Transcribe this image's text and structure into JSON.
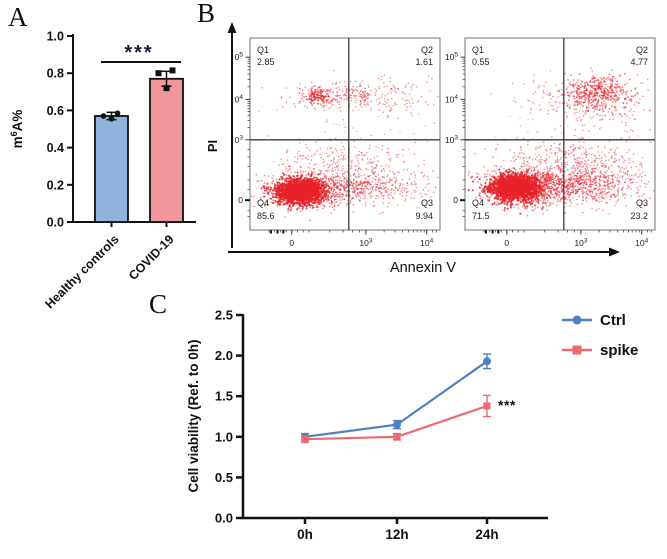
{
  "panels": {
    "a_label": "A",
    "b_label": "B",
    "c_label": "C"
  },
  "panelB_axes": {
    "xlabel": "Annexin V",
    "ylabel": "PI"
  },
  "chart_data": [
    {
      "id": "A",
      "type": "bar",
      "ylabel": {
        "pre": "m",
        "sup": "6",
        "post": "A%"
      },
      "categories": [
        "Healthy controls",
        "COVID-19"
      ],
      "values": [
        0.57,
        0.77
      ],
      "errors": [
        0.02,
        0.04
      ],
      "points": [
        [
          0.57,
          0.585,
          0.555
        ],
        [
          0.8,
          0.815,
          0.72
        ]
      ],
      "bar_colors": [
        "#92b2de",
        "#f0969c"
      ],
      "point_color": "#111111",
      "significance": "***",
      "significance_color": "#1c1c3c",
      "ylim": [
        0,
        1.0
      ],
      "yticks": [
        "1.0",
        "0.8",
        "0.6",
        "0.4",
        "0.2",
        "0.0"
      ],
      "grid": false
    },
    {
      "id": "B_left",
      "type": "scatter",
      "xlabel": "Annexin V",
      "ylabel": "PI",
      "quadrant_labels": [
        "Q1",
        "Q2",
        "Q3",
        "Q4"
      ],
      "quadrant_values": [
        "2.85",
        "1.61",
        "9.94",
        "85.6"
      ],
      "xticks": [
        "0",
        "10^3",
        "10^4"
      ],
      "yticks": [
        "0^5",
        "0^4",
        "0^3",
        "0"
      ],
      "dot_color": "#e8232b",
      "clusters": [
        {
          "n": 1800,
          "cx": 0.26,
          "cy": 0.8,
          "sx": 0.06,
          "sy": 0.03,
          "r": 1.05,
          "a": 0.85
        },
        {
          "n": 700,
          "cx": 0.3,
          "cy": 0.795,
          "sx": 0.11,
          "sy": 0.045,
          "r": 0.8,
          "a": 0.6
        },
        {
          "n": 420,
          "cx": 0.5,
          "cy": 0.78,
          "sx": 0.15,
          "sy": 0.04,
          "r": 0.8,
          "a": 0.55
        },
        {
          "n": 160,
          "cx": 0.72,
          "cy": 0.77,
          "sx": 0.13,
          "sy": 0.05,
          "r": 0.8,
          "a": 0.5
        },
        {
          "n": 220,
          "cx": 0.45,
          "cy": 0.64,
          "sx": 0.17,
          "sy": 0.055,
          "r": 0.8,
          "a": 0.5
        },
        {
          "n": 260,
          "cx": 0.46,
          "cy": 0.305,
          "sx": 0.14,
          "sy": 0.035,
          "r": 0.8,
          "a": 0.5
        },
        {
          "n": 110,
          "cx": 0.355,
          "cy": 0.3,
          "sx": 0.035,
          "sy": 0.022,
          "r": 0.9,
          "a": 0.65
        },
        {
          "n": 80,
          "cx": 0.78,
          "cy": 0.31,
          "sx": 0.12,
          "sy": 0.06,
          "r": 0.8,
          "a": 0.5
        },
        {
          "n": 45,
          "cx": 0.55,
          "cy": 0.45,
          "sx": 0.25,
          "sy": 0.1,
          "r": 0.7,
          "a": 0.4
        }
      ]
    },
    {
      "id": "B_right",
      "type": "scatter",
      "xlabel": "Annexin V",
      "ylabel": "PI",
      "quadrant_labels": [
        "Q1",
        "Q2",
        "Q3",
        "Q4"
      ],
      "quadrant_values": [
        "0.55",
        "4.77",
        "23.2",
        "71.5"
      ],
      "xticks": [
        "0",
        "10^3",
        "10^4"
      ],
      "yticks": [
        "10^5",
        "10^4",
        "10^3",
        "0"
      ],
      "dot_color": "#e8232b",
      "clusters": [
        {
          "n": 1700,
          "cx": 0.26,
          "cy": 0.78,
          "sx": 0.065,
          "sy": 0.033,
          "r": 1.05,
          "a": 0.85
        },
        {
          "n": 700,
          "cx": 0.33,
          "cy": 0.775,
          "sx": 0.12,
          "sy": 0.05,
          "r": 0.8,
          "a": 0.6
        },
        {
          "n": 620,
          "cx": 0.52,
          "cy": 0.765,
          "sx": 0.16,
          "sy": 0.05,
          "r": 0.8,
          "a": 0.55
        },
        {
          "n": 280,
          "cx": 0.74,
          "cy": 0.75,
          "sx": 0.12,
          "sy": 0.06,
          "r": 0.8,
          "a": 0.5
        },
        {
          "n": 260,
          "cx": 0.56,
          "cy": 0.62,
          "sx": 0.18,
          "sy": 0.055,
          "r": 0.8,
          "a": 0.5
        },
        {
          "n": 380,
          "cx": 0.7,
          "cy": 0.285,
          "sx": 0.085,
          "sy": 0.045,
          "r": 0.9,
          "a": 0.6
        },
        {
          "n": 180,
          "cx": 0.74,
          "cy": 0.33,
          "sx": 0.15,
          "sy": 0.08,
          "r": 0.8,
          "a": 0.5
        },
        {
          "n": 60,
          "cx": 0.45,
          "cy": 0.32,
          "sx": 0.12,
          "sy": 0.06,
          "r": 0.8,
          "a": 0.45
        },
        {
          "n": 35,
          "cx": 0.6,
          "cy": 0.47,
          "sx": 0.25,
          "sy": 0.09,
          "r": 0.7,
          "a": 0.4
        }
      ]
    },
    {
      "id": "C",
      "type": "line",
      "categories": [
        "0h",
        "12h",
        "24h"
      ],
      "series": [
        {
          "name": "Ctrl",
          "marker": "circle",
          "color": "#4f7fc4",
          "values": [
            1.0,
            1.15,
            1.93
          ],
          "errors": [
            0.04,
            0.05,
            0.09
          ]
        },
        {
          "name": "spike",
          "marker": "square",
          "color": "#ee6a6f",
          "values": [
            0.97,
            1.0,
            1.38
          ],
          "errors": [
            0.04,
            0.04,
            0.13
          ]
        }
      ],
      "ylabel": "Cell viability (Ref. to 0h)",
      "ylim": [
        0,
        2.5
      ],
      "yticks": [
        "0.0",
        "0.5",
        "1.0",
        "1.5",
        "2.0",
        "2.5"
      ],
      "annotation": "***",
      "annotation_color": "#111111",
      "legend_position": "top-right",
      "grid": false
    }
  ]
}
